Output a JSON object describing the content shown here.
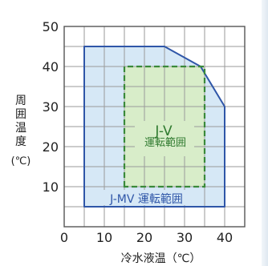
{
  "chart_data": {
    "type": "area",
    "xlabel": "冷水液温（℃）",
    "ylabel_chars": [
      "周",
      "囲",
      "温",
      "度"
    ],
    "ylabel_unit": "(℃)",
    "xlim": [
      0,
      45
    ],
    "ylim": [
      0,
      50
    ],
    "x_ticks": [
      0,
      10,
      20,
      30,
      40
    ],
    "y_ticks": [
      10,
      20,
      30,
      40,
      50
    ],
    "grid": true,
    "colors": {
      "mv_fill": "#d6e8f6",
      "mv_line": "#2f56a8",
      "v_fill": "#d8edc9",
      "v_line": "#3a8a3a",
      "v_text": "#2f7a2f",
      "mv_text": "#2f56a8",
      "grid": "#9a9a9a",
      "frame": "#555555",
      "text": "#222222"
    },
    "series": [
      {
        "name": "J-MV 運転範囲",
        "style": "solid",
        "points": [
          [
            5,
            5
          ],
          [
            5,
            45
          ],
          [
            25,
            45
          ],
          [
            34,
            40
          ],
          [
            40,
            30
          ],
          [
            40,
            5
          ]
        ]
      },
      {
        "name": "J-V 運転範囲",
        "label_lines": [
          "J-V",
          "運転範囲"
        ],
        "style": "dashed",
        "points": [
          [
            15,
            10
          ],
          [
            15,
            40
          ],
          [
            35,
            40
          ],
          [
            35,
            10
          ]
        ]
      }
    ]
  }
}
